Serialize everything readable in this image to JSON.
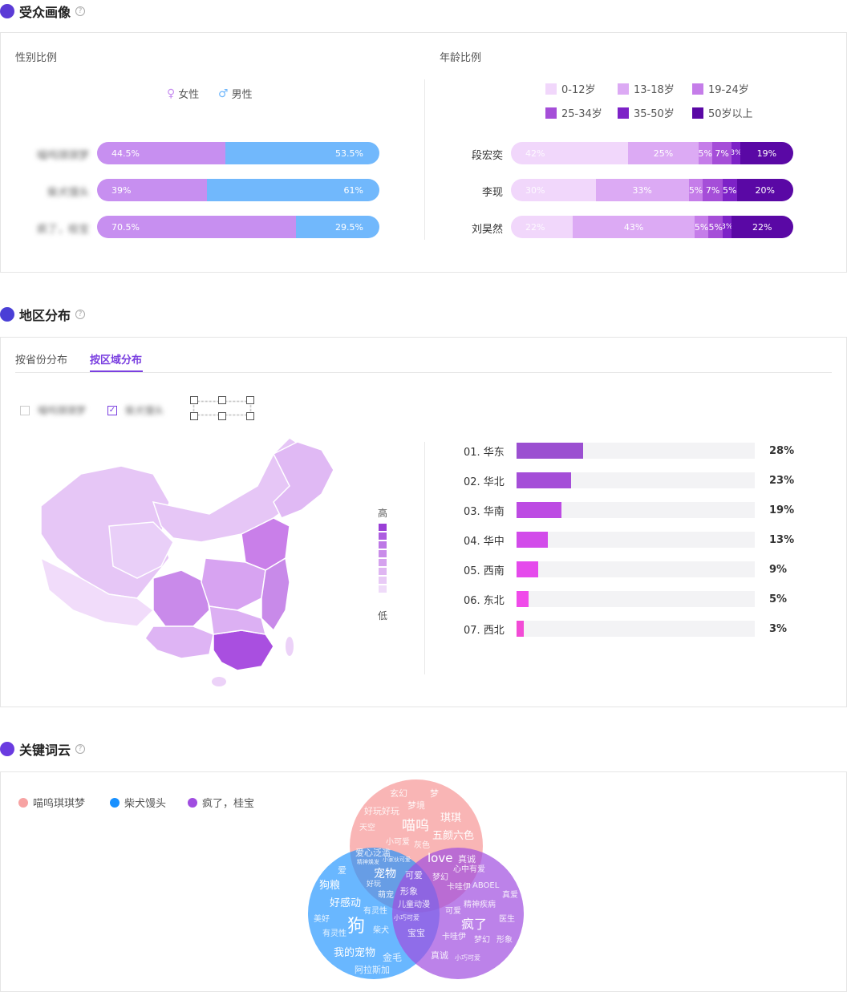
{
  "audience": {
    "title": "受众画像",
    "gender": {
      "label": "性别比例",
      "legend": [
        "女性",
        "男性"
      ],
      "colors": {
        "female": "#c78ff0",
        "male": "#71b8fc"
      },
      "rows": [
        {
          "name": "喵呜琪琪梦",
          "female": 44.5,
          "male": 53.5,
          "female_text": "44.5%",
          "male_text": "53.5%"
        },
        {
          "name": "柴犬馒头",
          "female": 39,
          "male": 61,
          "female_text": "39%",
          "male_text": "61%"
        },
        {
          "name": "疯了，桂宝",
          "female": 70.5,
          "male": 29.5,
          "female_text": "70.5%",
          "male_text": "29.5%"
        }
      ]
    },
    "age": {
      "label": "年龄比例",
      "legend": [
        "0-12岁",
        "13-18岁",
        "19-24岁",
        "25-34岁",
        "35-50岁",
        "50岁以上"
      ],
      "colors": [
        "#f1d7fb",
        "#dcaaf4",
        "#c57de9",
        "#a54ed8",
        "#7d22c7",
        "#5a08a5"
      ],
      "rows": [
        {
          "name": "段宏奕",
          "values": [
            42,
            25,
            5,
            7,
            3,
            19
          ],
          "texts": [
            "42%",
            "25%",
            "5%",
            "7%",
            "3%",
            "19%"
          ]
        },
        {
          "name": "李现",
          "values": [
            30,
            33,
            5,
            7,
            5,
            20
          ],
          "texts": [
            "30%",
            "33%",
            "5%",
            "7%",
            "5%",
            "20%"
          ]
        },
        {
          "name": "刘昊然",
          "values": [
            22,
            43,
            5,
            5,
            3,
            22
          ],
          "texts": [
            "22%",
            "43%",
            "5%",
            "5%",
            "3%",
            "22%"
          ]
        }
      ]
    }
  },
  "region": {
    "title": "地区分布",
    "tabs": [
      "按省份分布",
      "按区域分布"
    ],
    "active_tab": 1,
    "filters": [
      {
        "label": "喵呜琪琪梦",
        "checked": false
      },
      {
        "label": "柴犬馒头",
        "checked": true
      }
    ],
    "scale_high": "高",
    "scale_low": "低",
    "rows": [
      {
        "name": "01. 华东",
        "value": 28,
        "text": "28%",
        "color": "#9b4fd1"
      },
      {
        "name": "02. 华北",
        "value": 23,
        "text": "23%",
        "color": "#a54ed8"
      },
      {
        "name": "03. 华南",
        "value": 19,
        "text": "19%",
        "color": "#bd4be3"
      },
      {
        "name": "04. 华中",
        "value": 13,
        "text": "13%",
        "color": "#d24bea"
      },
      {
        "name": "05. 西南",
        "value": 9,
        "text": "9%",
        "color": "#e54aec"
      },
      {
        "name": "06. 东北",
        "value": 5,
        "text": "5%",
        "color": "#f04bea"
      },
      {
        "name": "07. 西北",
        "value": 3,
        "text": "3%",
        "color": "#f24bd6"
      }
    ]
  },
  "keywords": {
    "title": "关键词云",
    "legend": [
      {
        "label": "喵呜琪琪梦",
        "color": "#f7a3a3"
      },
      {
        "label": "柴犬馒头",
        "color": "#1890ff"
      },
      {
        "label": "疯了，桂宝",
        "color": "#a04de0"
      }
    ],
    "words": [
      "玄幻",
      "梦",
      "好玩好玩",
      "梦境",
      "喵呜",
      "琪琪",
      "天空",
      "五颜六色",
      "小可爱",
      "灰色",
      "爱心泛滥",
      "love",
      "真诚",
      "精神焕发",
      "小家伙可爱",
      "心中有爱",
      "爱",
      "宠物",
      "可爱",
      "梦幻",
      "狗粮",
      "好玩",
      "萌宠",
      "形象",
      "卡哇伊",
      "ABOEL",
      "好感动",
      "儿童动漫",
      "真爱",
      "有灵性",
      "可爱",
      "精神疾病",
      "美好",
      "狗",
      "小巧可爱",
      "疯了",
      "医生",
      "有灵性",
      "柴犬",
      "宝宝",
      "卡哇伊",
      "梦幻",
      "形象",
      "我的宠物",
      "金毛",
      "真诚",
      "小巧可爱",
      "阿拉斯加"
    ]
  }
}
